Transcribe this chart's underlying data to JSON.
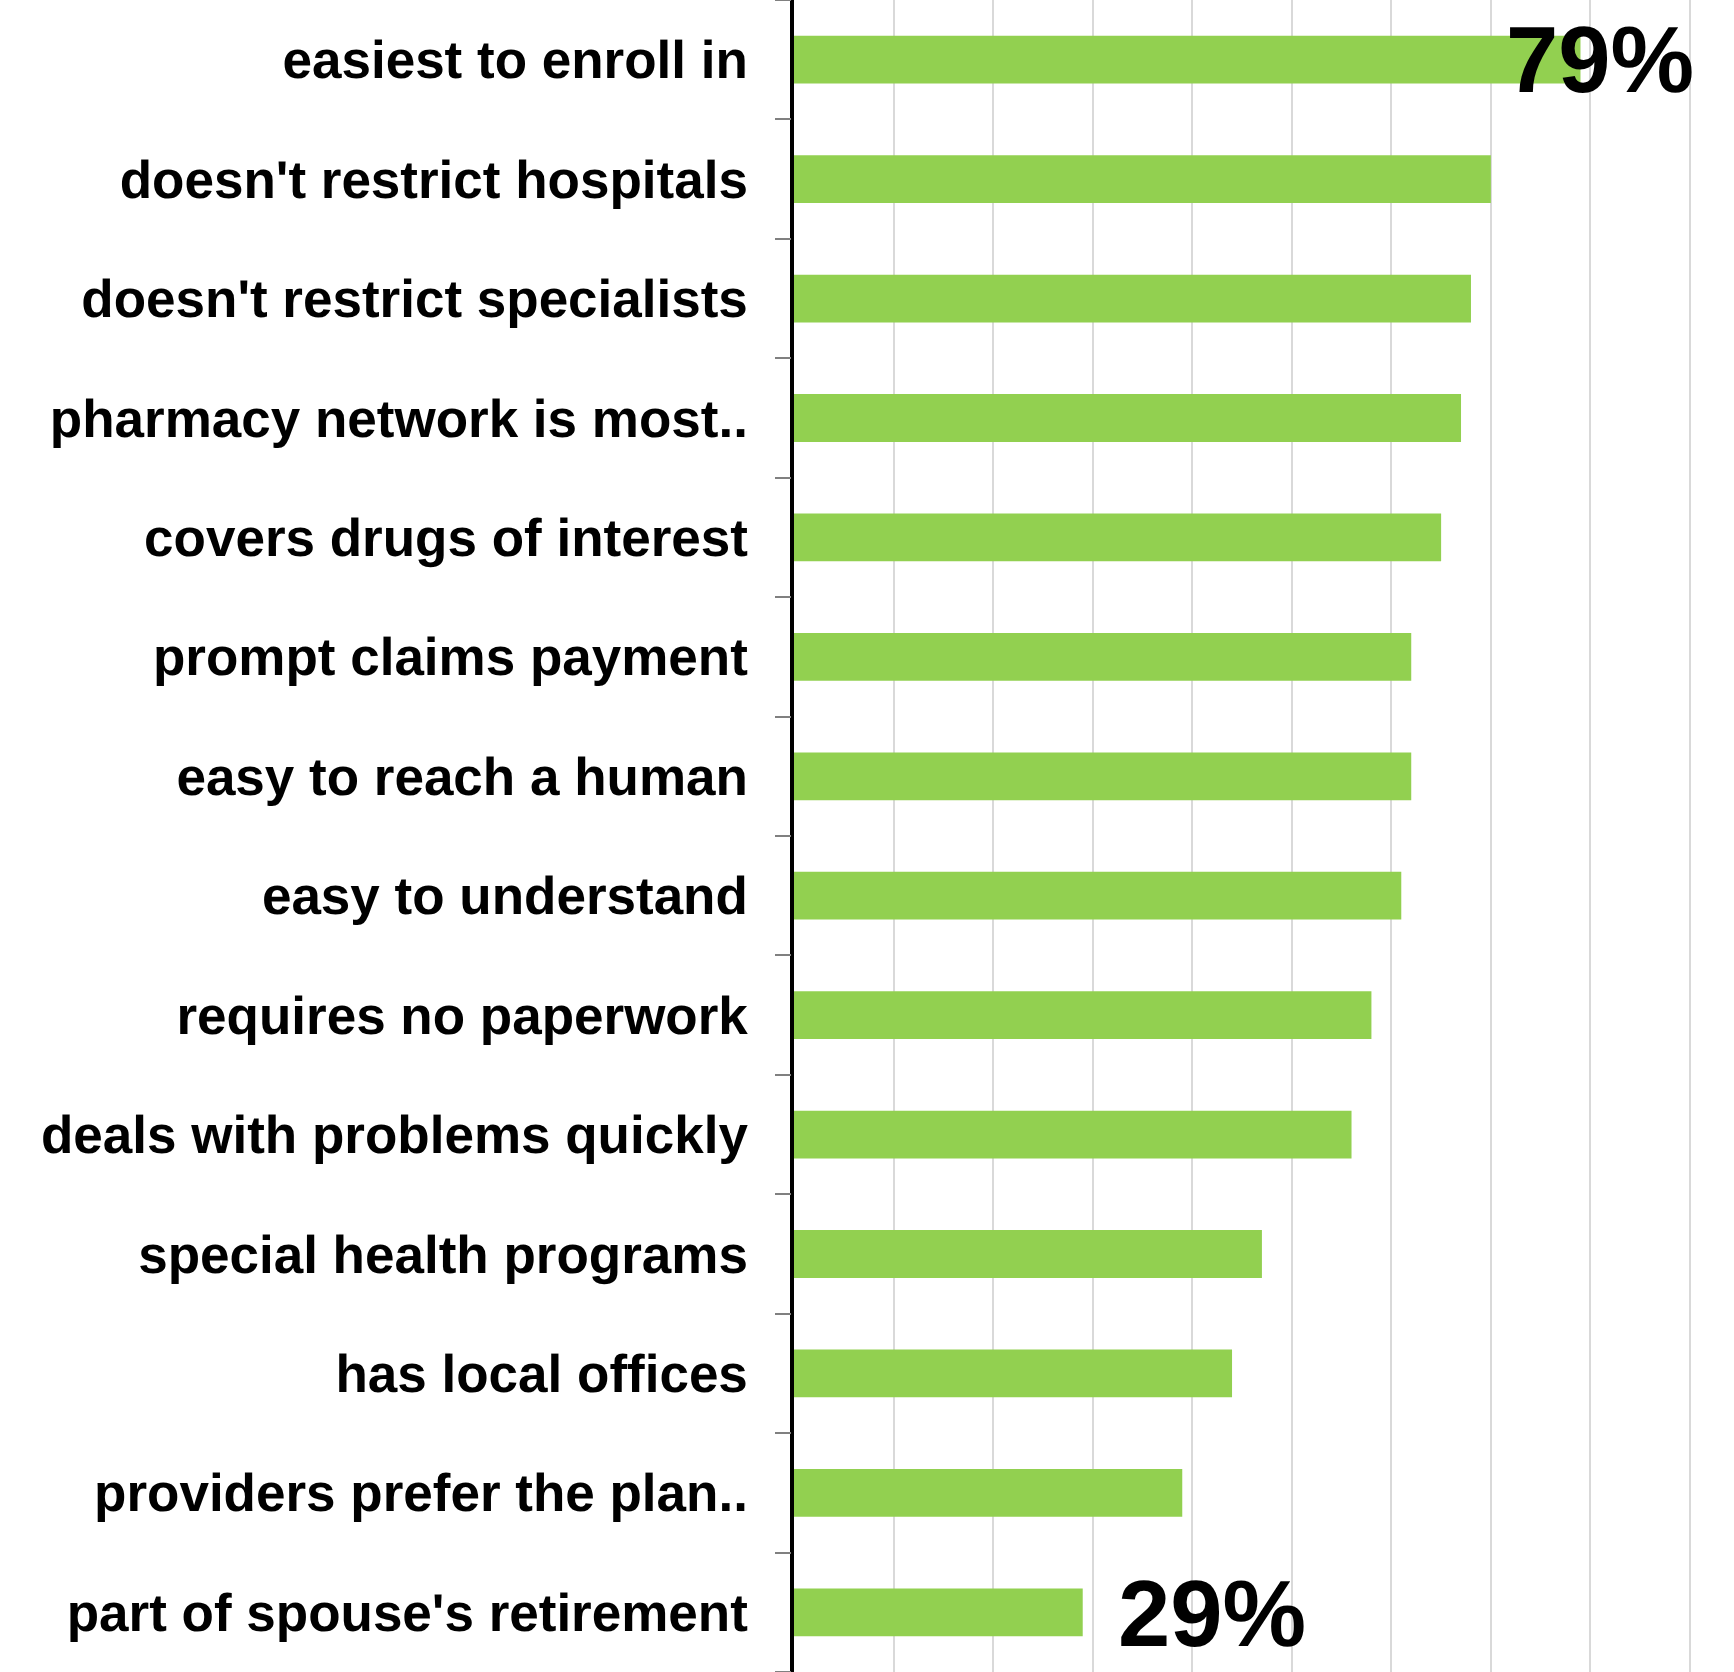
{
  "chart_data": {
    "type": "bar",
    "orientation": "horizontal",
    "categories": [
      "easiest to enroll in",
      "doesn't restrict hospitals",
      "doesn't restrict specialists",
      "pharmacy network is most..",
      "covers drugs of interest",
      "prompt claims payment",
      "easy to reach a human",
      "easy to understand",
      "requires no paperwork",
      "deals with problems quickly",
      "special health programs",
      "has local offices",
      "providers prefer the plan..",
      "part of spouse's retirement"
    ],
    "values": [
      79,
      70,
      68,
      67,
      65,
      62,
      62,
      61,
      58,
      56,
      47,
      44,
      39,
      29
    ],
    "value_labels": [
      "79%",
      null,
      null,
      null,
      null,
      null,
      null,
      null,
      null,
      null,
      null,
      null,
      null,
      "29%"
    ],
    "color": "#92d050",
    "xticks": [
      {
        "value": 10,
        "label": null
      },
      {
        "value": 20,
        "label": null
      },
      {
        "value": 30,
        "label": null
      },
      {
        "value": 40,
        "label": null
      },
      {
        "value": 50,
        "label": null
      },
      {
        "value": 60,
        "label": null
      },
      {
        "value": 70,
        "label": null
      },
      {
        "value": 80,
        "label": null
      },
      {
        "value": 90,
        "label": null
      }
    ],
    "grid": "x",
    "tick_labels": "y"
  }
}
